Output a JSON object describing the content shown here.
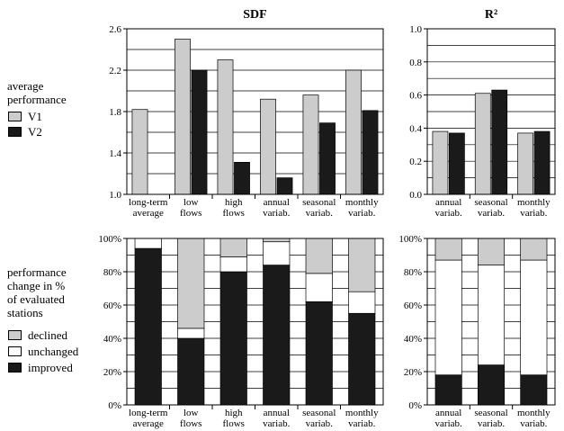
{
  "legend_top": {
    "title_line1": "average",
    "title_line2": "performance",
    "items": [
      {
        "label": "V1",
        "color": "#cccccc"
      },
      {
        "label": "V2",
        "color": "#1a1a1a"
      }
    ]
  },
  "legend_bottom": {
    "title_line1": "performance",
    "title_line2": "change in %",
    "title_line3": "of evaluated",
    "title_line4": "stations",
    "items": [
      {
        "label": "declined",
        "color": "#cccccc"
      },
      {
        "label": "unchanged",
        "color": "#ffffff"
      },
      {
        "label": "improved",
        "color": "#1a1a1a"
      }
    ]
  },
  "chart_data": [
    {
      "id": "sdf",
      "type": "bar",
      "title": "SDF",
      "categories": [
        [
          "long-term",
          "average"
        ],
        [
          "low",
          "flows"
        ],
        [
          "high",
          "flows"
        ],
        [
          "annual",
          "variab."
        ],
        [
          "seasonal",
          "variab."
        ],
        [
          "monthly",
          "variab."
        ]
      ],
      "series": [
        {
          "name": "V1",
          "color": "#cccccc",
          "values": [
            1.82,
            2.5,
            2.3,
            1.92,
            1.96,
            2.2
          ]
        },
        {
          "name": "V2",
          "color": "#1a1a1a",
          "values": [
            null,
            2.2,
            1.31,
            1.16,
            1.69,
            1.81
          ]
        }
      ],
      "ylim": [
        1.0,
        2.6
      ],
      "yticks": [
        "1.0",
        "1.4",
        "1.8",
        "2.2",
        "2.6"
      ],
      "ytick_values": [
        1.0,
        1.4,
        1.8,
        2.2,
        2.6
      ],
      "grid_step": 0.2
    },
    {
      "id": "r2",
      "type": "bar",
      "title": "R²",
      "categories": [
        [
          "annual",
          "variab."
        ],
        [
          "seasonal",
          "variab."
        ],
        [
          "monthly",
          "variab."
        ]
      ],
      "series": [
        {
          "name": "V1",
          "color": "#cccccc",
          "values": [
            0.38,
            0.61,
            0.37
          ]
        },
        {
          "name": "V2",
          "color": "#1a1a1a",
          "values": [
            0.37,
            0.63,
            0.38
          ]
        }
      ],
      "ylim": [
        0.0,
        1.0
      ],
      "yticks": [
        "0.0",
        "0.2",
        "0.4",
        "0.6",
        "0.8",
        "1.0"
      ],
      "ytick_values": [
        0.0,
        0.2,
        0.4,
        0.6,
        0.8,
        1.0
      ],
      "grid_step": 0.1
    },
    {
      "id": "sdf_change",
      "type": "stacked-bar",
      "categories": [
        [
          "long-term",
          "average"
        ],
        [
          "low",
          "flows"
        ],
        [
          "high",
          "flows"
        ],
        [
          "annual",
          "variab."
        ],
        [
          "seasonal",
          "variab."
        ],
        [
          "monthly",
          "variab."
        ]
      ],
      "series": [
        {
          "name": "improved",
          "color": "#1a1a1a",
          "values": [
            94,
            40,
            80,
            84,
            62,
            55
          ]
        },
        {
          "name": "unchanged",
          "color": "#ffffff",
          "values": [
            6,
            6,
            9,
            14,
            17,
            13
          ]
        },
        {
          "name": "declined",
          "color": "#cccccc",
          "values": [
            0,
            54,
            11,
            2,
            21,
            32
          ]
        }
      ],
      "ylim": [
        0,
        100
      ],
      "yticks": [
        "0%",
        "20%",
        "40%",
        "60%",
        "80%",
        "100%"
      ],
      "ytick_values": [
        0,
        20,
        40,
        60,
        80,
        100
      ],
      "grid_step": 10
    },
    {
      "id": "r2_change",
      "type": "stacked-bar",
      "categories": [
        [
          "annual",
          "variab."
        ],
        [
          "seasonal",
          "variab."
        ],
        [
          "monthly",
          "variab."
        ]
      ],
      "series": [
        {
          "name": "improved",
          "color": "#1a1a1a",
          "values": [
            18,
            24,
            18
          ]
        },
        {
          "name": "unchanged",
          "color": "#ffffff",
          "values": [
            69,
            60,
            69
          ]
        },
        {
          "name": "declined",
          "color": "#cccccc",
          "values": [
            13,
            16,
            13
          ]
        }
      ],
      "ylim": [
        0,
        100
      ],
      "yticks": [
        "0%",
        "20%",
        "40%",
        "60%",
        "80%",
        "100%"
      ],
      "ytick_values": [
        0,
        20,
        40,
        60,
        80,
        100
      ],
      "grid_step": 10
    }
  ]
}
